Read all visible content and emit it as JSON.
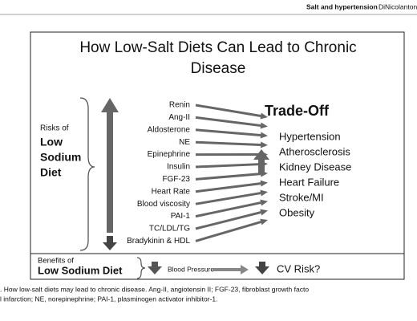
{
  "header": {
    "running_title": "Salt and hypertension",
    "authors": "DiNicolantonio and"
  },
  "figure": {
    "title_lines": [
      "How Low-Salt Diets Can Lead to Chronic",
      "Disease"
    ],
    "risks_label": [
      "Risks of",
      "Low",
      "Sodium",
      "Diet"
    ],
    "factors": [
      "Renin",
      "Ang-II",
      "Aldosterone",
      "NE",
      "Epinephrine",
      "Insulin",
      "FGF-23",
      "Heart Rate",
      "Blood viscosity",
      "PAI-1",
      "TC/LDL/TG",
      "Bradykinin & HDL"
    ],
    "trade_off": "Trade-Off",
    "outcomes": [
      "Hypertension",
      "Atherosclerosis",
      "Kidney Disease",
      "Heart Failure",
      "Stroke/MI",
      "Obesity"
    ],
    "benefits_label": [
      "Benefits of",
      "Low Sodium Diet"
    ],
    "blood_pressure": "Blood Pressure",
    "cv_risk": "CV Risk?"
  },
  "caption": [
    ". How low-salt diets may lead to chronic disease. Ang-II, angiotensin II; FGF-23, fibroblast growth facto",
    "l infarction; NE, norepinephrine; PAI-1, plasminogen activator inhibitor-1."
  ]
}
